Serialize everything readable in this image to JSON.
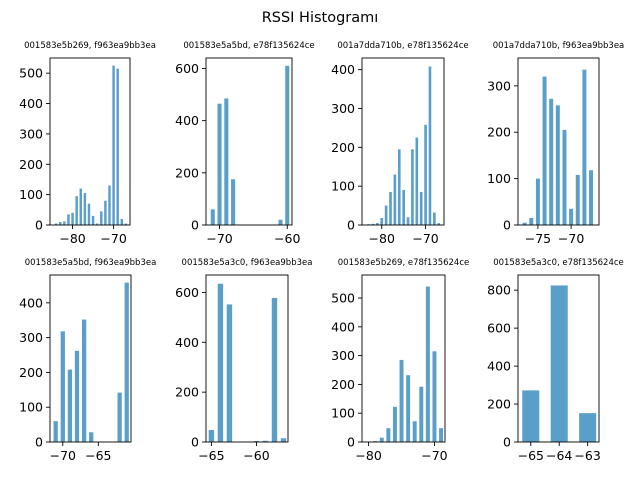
{
  "figure": {
    "title": "RSSI Histogramı",
    "bar_color": "#5a9fca"
  },
  "chart_data": [
    {
      "type": "bar",
      "title": "001583e5b269, f963ea9bb3ea",
      "x": [
        -84,
        -83,
        -82,
        -81,
        -80,
        -79,
        -78,
        -77,
        -76,
        -75,
        -74,
        -73,
        -72,
        -71,
        -70,
        -69,
        -68,
        -67
      ],
      "values": [
        5,
        10,
        12,
        35,
        40,
        95,
        120,
        105,
        70,
        30,
        5,
        45,
        80,
        130,
        525,
        515,
        20,
        5
      ],
      "xlim": [
        -85.5,
        -66
      ],
      "ylim": [
        0,
        550
      ],
      "xticks": [
        -80,
        -70
      ],
      "yticks": [
        0,
        100,
        200,
        300,
        400,
        500
      ]
    },
    {
      "type": "bar",
      "title": "001583e5a5bd, e78f135624ce",
      "x": [
        -71,
        -70,
        -69,
        -68,
        -61,
        -60
      ],
      "values": [
        60,
        465,
        485,
        175,
        20,
        610
      ],
      "xlim": [
        -72,
        -59.3
      ],
      "ylim": [
        0,
        640
      ],
      "xticks": [
        -70,
        -60
      ],
      "yticks": [
        0,
        200,
        400,
        600
      ]
    },
    {
      "type": "bar",
      "title": "001a7dda710b, e78f135624ce",
      "x": [
        -83,
        -82,
        -81,
        -80,
        -79,
        -78,
        -77,
        -76,
        -75,
        -74,
        -73,
        -72,
        -71,
        -70,
        -69,
        -68,
        -67
      ],
      "values": [
        2,
        3,
        5,
        18,
        50,
        85,
        130,
        195,
        90,
        20,
        195,
        225,
        85,
        258,
        408,
        32,
        5
      ],
      "xlim": [
        -84.5,
        -65.8
      ],
      "ylim": [
        0,
        430
      ],
      "xticks": [
        -80,
        -70
      ],
      "yticks": [
        0,
        100,
        200,
        300,
        400
      ]
    },
    {
      "type": "bar",
      "title": "001a7dda710b, f963ea9bb3ea",
      "x": [
        -77,
        -76,
        -75,
        -74,
        -73,
        -72,
        -71,
        -70,
        -69,
        -68,
        -67
      ],
      "values": [
        5,
        15,
        100,
        320,
        272,
        258,
        205,
        35,
        108,
        335,
        118
      ],
      "xlim": [
        -78,
        -65.8
      ],
      "ylim": [
        0,
        360
      ],
      "xticks": [
        -75,
        -70
      ],
      "yticks": [
        0,
        100,
        200,
        300
      ]
    },
    {
      "type": "bar",
      "title": "001583e5a5bd, f963ea9bb3ea",
      "x": [
        -71,
        -70,
        -69,
        -68,
        -67,
        -66,
        -62,
        -61
      ],
      "values": [
        60,
        318,
        208,
        262,
        352,
        28,
        142,
        458
      ],
      "xlim": [
        -71.8,
        -60.4
      ],
      "ylim": [
        0,
        480
      ],
      "xticks": [
        -70,
        -65
      ],
      "yticks": [
        0,
        100,
        200,
        300,
        400
      ]
    },
    {
      "type": "bar",
      "title": "001583e5a3c0, f963ea9bb3ea",
      "x": [
        -65,
        -64,
        -63,
        -60,
        -59,
        -58,
        -57
      ],
      "values": [
        48,
        635,
        552,
        4,
        5,
        578,
        15
      ],
      "xlim": [
        -65.6,
        -56.5
      ],
      "ylim": [
        0,
        670
      ],
      "xticks": [
        -65,
        -60
      ],
      "yticks": [
        0,
        200,
        400,
        600
      ]
    },
    {
      "type": "bar",
      "title": "001583e5b269, e78f135624ce",
      "x": [
        -79,
        -78,
        -77,
        -76,
        -75,
        -74,
        -73,
        -72,
        -71,
        -70,
        -69
      ],
      "values": [
        3,
        15,
        48,
        122,
        285,
        232,
        72,
        192,
        540,
        315,
        48
      ],
      "xlim": [
        -81,
        -68.4
      ],
      "ylim": [
        0,
        580
      ],
      "xticks": [
        -80,
        -70
      ],
      "yticks": [
        0,
        100,
        200,
        300,
        400,
        500
      ]
    },
    {
      "type": "bar",
      "title": "001583e5a3c0, e78f135624ce",
      "x": [
        -65,
        -64,
        -63
      ],
      "values": [
        272,
        825,
        152
      ],
      "xlim": [
        -65.45,
        -62.6
      ],
      "ylim": [
        0,
        880
      ],
      "xticks": [
        -65,
        -64,
        -63
      ],
      "yticks": [
        0,
        200,
        400,
        600,
        800
      ]
    }
  ]
}
